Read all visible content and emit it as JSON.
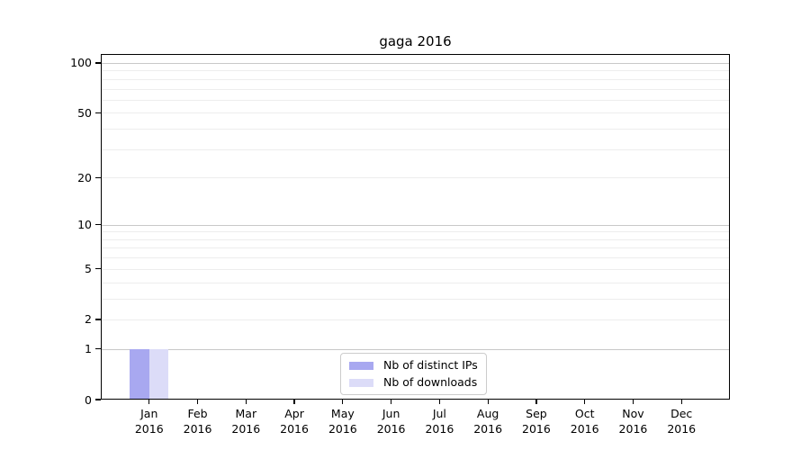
{
  "figure": {
    "background": "#ffffff",
    "axis_color": "#000000",
    "major_grid_color": "#c8c8c8",
    "minor_grid_color": "#ededed"
  },
  "chart_data": {
    "type": "bar",
    "title": "gaga 2016",
    "x_tick_labels": [
      {
        "month": "Jan",
        "year": "2016"
      },
      {
        "month": "Feb",
        "year": "2016"
      },
      {
        "month": "Mar",
        "year": "2016"
      },
      {
        "month": "Apr",
        "year": "2016"
      },
      {
        "month": "May",
        "year": "2016"
      },
      {
        "month": "Jun",
        "year": "2016"
      },
      {
        "month": "Jul",
        "year": "2016"
      },
      {
        "month": "Aug",
        "year": "2016"
      },
      {
        "month": "Sep",
        "year": "2016"
      },
      {
        "month": "Oct",
        "year": "2016"
      },
      {
        "month": "Nov",
        "year": "2016"
      },
      {
        "month": "Dec",
        "year": "2016"
      }
    ],
    "series": [
      {
        "name": "Nb of distinct IPs",
        "color": "#a8a8f0",
        "values": [
          1,
          0,
          0,
          0,
          0,
          0,
          0,
          0,
          0,
          0,
          0,
          0
        ]
      },
      {
        "name": "Nb of downloads",
        "color": "#dcdcf8",
        "values": [
          1,
          0,
          0,
          0,
          0,
          0,
          0,
          0,
          0,
          0,
          0,
          0
        ]
      }
    ],
    "y_scale": "log10(1+x)",
    "y_tick_labels": [
      "0",
      "1",
      "2",
      "5",
      "10",
      "20",
      "50",
      "100"
    ],
    "y_tick_values": [
      0,
      1,
      2,
      5,
      10,
      20,
      50,
      100
    ],
    "major_gridline_values": [
      1,
      10,
      100
    ],
    "minor_gridline_values": [
      2,
      3,
      4,
      5,
      6,
      7,
      8,
      9,
      20,
      30,
      40,
      50,
      60,
      70,
      80,
      90
    ],
    "ylim": [
      0,
      115
    ],
    "grid": "on",
    "legend": {
      "position": "lower center",
      "entries": [
        "Nb of distinct IPs",
        "Nb of downloads"
      ]
    }
  }
}
